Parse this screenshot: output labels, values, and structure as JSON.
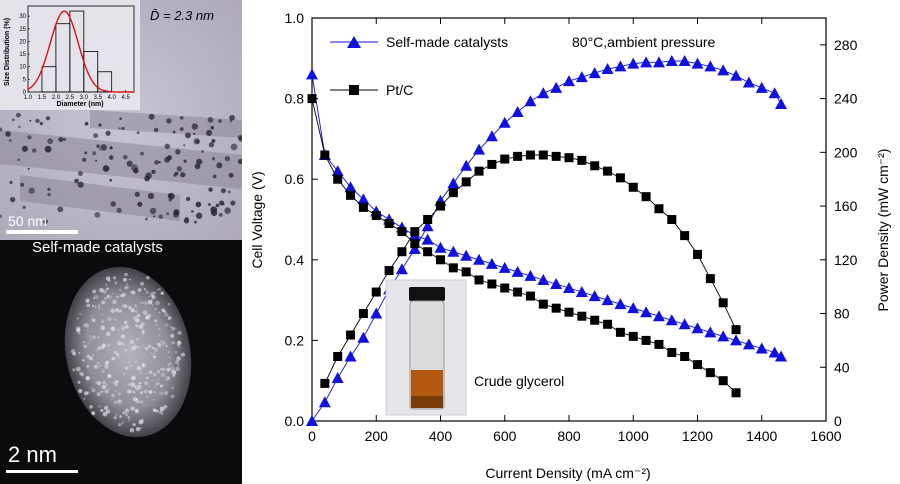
{
  "left_panels": {
    "tem": {
      "mean_diameter_label": "D̄ = 2.3 nm",
      "scale_bar_label": "50 nm",
      "histogram": {
        "type": "bar",
        "xlabel": "Diameter (nm)",
        "ylabel": "Size Distribution (%)",
        "x_ticks": [
          "1.0",
          "1.5",
          "2.0",
          "2.5",
          "3.0",
          "3.5",
          "4.0",
          "4.5"
        ],
        "y_ticks": [
          "0",
          "5",
          "10",
          "15",
          "20",
          "25",
          "30"
        ],
        "bin_edges": [
          1.0,
          1.5,
          2.0,
          2.5,
          3.0,
          3.5,
          4.0,
          4.5
        ],
        "values": [
          0,
          10,
          27,
          32,
          16,
          8,
          0
        ],
        "fit": {
          "mean": 2.3,
          "sigma": 0.5,
          "peak": 32
        }
      }
    },
    "haadf": {
      "label": "Self-made catalysts",
      "scale_bar_label": "2 nm"
    }
  },
  "chart_data": {
    "type": "line",
    "title": "",
    "annotation": "80°C,ambient pressure",
    "xlabel": "Current Density (mA cm⁻²)",
    "ylabel_left": "Cell Voltage (V)",
    "ylabel_right": "Power Density (mW cm⁻²)",
    "xlim": [
      0,
      1600
    ],
    "ylim_left": [
      0,
      1.0
    ],
    "ylim_right": [
      0,
      300
    ],
    "x_ticks": [
      "0",
      "200",
      "400",
      "600",
      "800",
      "1000",
      "1200",
      "1400",
      "1600"
    ],
    "y_ticks_left": [
      "0.0",
      "0.2",
      "0.4",
      "0.6",
      "0.8",
      "1.0"
    ],
    "y_ticks_right": [
      "0",
      "40",
      "80",
      "120",
      "160",
      "200",
      "240",
      "280"
    ],
    "legend": [
      {
        "name": "Self-made catalysts",
        "marker": "triangle",
        "color": "#1010e0"
      },
      {
        "name": "Pt/C",
        "marker": "square",
        "color": "#000000"
      }
    ],
    "inset_label": "Crude glycerol",
    "series": [
      {
        "name": "Self-made catalysts",
        "axis": "left",
        "marker": "triangle",
        "color": "#1010e0",
        "x": [
          0,
          40,
          80,
          120,
          160,
          200,
          240,
          280,
          320,
          360,
          400,
          440,
          480,
          520,
          560,
          600,
          640,
          680,
          720,
          760,
          800,
          840,
          880,
          920,
          960,
          1000,
          1040,
          1080,
          1120,
          1160,
          1200,
          1240,
          1280,
          1320,
          1360,
          1400,
          1440,
          1460
        ],
        "y": [
          0.86,
          0.66,
          0.62,
          0.58,
          0.55,
          0.52,
          0.5,
          0.48,
          0.46,
          0.45,
          0.43,
          0.42,
          0.41,
          0.4,
          0.39,
          0.38,
          0.37,
          0.36,
          0.35,
          0.34,
          0.33,
          0.32,
          0.31,
          0.3,
          0.29,
          0.28,
          0.27,
          0.26,
          0.25,
          0.24,
          0.23,
          0.22,
          0.21,
          0.2,
          0.19,
          0.18,
          0.17,
          0.16
        ]
      },
      {
        "name": "Self-made catalysts power",
        "axis": "right",
        "marker": "triangle",
        "color": "#1010e0",
        "x": [
          0,
          40,
          80,
          120,
          160,
          200,
          240,
          280,
          320,
          360,
          400,
          440,
          480,
          520,
          560,
          600,
          640,
          680,
          720,
          760,
          800,
          840,
          880,
          920,
          960,
          1000,
          1040,
          1080,
          1120,
          1160,
          1200,
          1240,
          1280,
          1320,
          1360,
          1400,
          1440,
          1460
        ],
        "y": [
          0,
          14,
          32,
          48,
          62,
          80,
          98,
          113,
          128,
          145,
          164,
          177,
          190,
          202,
          212,
          222,
          230,
          238,
          244,
          248,
          253,
          256,
          259,
          262,
          264,
          266,
          267,
          267,
          268,
          268,
          266,
          264,
          261,
          257,
          252,
          248,
          244,
          236
        ]
      },
      {
        "name": "Pt/C",
        "axis": "left",
        "marker": "square",
        "color": "#000000",
        "x": [
          0,
          40,
          80,
          120,
          160,
          200,
          240,
          280,
          320,
          360,
          400,
          440,
          480,
          520,
          560,
          600,
          640,
          680,
          720,
          760,
          800,
          840,
          880,
          920,
          960,
          1000,
          1040,
          1080,
          1120,
          1160,
          1200,
          1240,
          1280,
          1320
        ],
        "y": [
          0.8,
          0.66,
          0.6,
          0.56,
          0.53,
          0.51,
          0.49,
          0.47,
          0.44,
          0.42,
          0.4,
          0.38,
          0.37,
          0.35,
          0.34,
          0.33,
          0.32,
          0.31,
          0.29,
          0.28,
          0.27,
          0.26,
          0.25,
          0.24,
          0.22,
          0.21,
          0.2,
          0.19,
          0.17,
          0.16,
          0.14,
          0.12,
          0.1,
          0.07
        ]
      },
      {
        "name": "Pt/C power",
        "axis": "right",
        "marker": "square",
        "color": "#000000",
        "x": [
          40,
          80,
          120,
          160,
          200,
          240,
          280,
          320,
          360,
          400,
          440,
          480,
          520,
          560,
          600,
          640,
          680,
          720,
          760,
          800,
          840,
          880,
          920,
          960,
          1000,
          1040,
          1080,
          1120,
          1160,
          1200,
          1240,
          1280,
          1320
        ],
        "y": [
          28,
          48,
          64,
          80,
          96,
          112,
          126,
          141,
          150,
          160,
          170,
          178,
          186,
          191,
          195,
          197,
          198,
          198,
          197,
          196,
          194,
          190,
          186,
          181,
          174,
          167,
          158,
          150,
          138,
          124,
          106,
          88,
          68
        ]
      }
    ]
  }
}
